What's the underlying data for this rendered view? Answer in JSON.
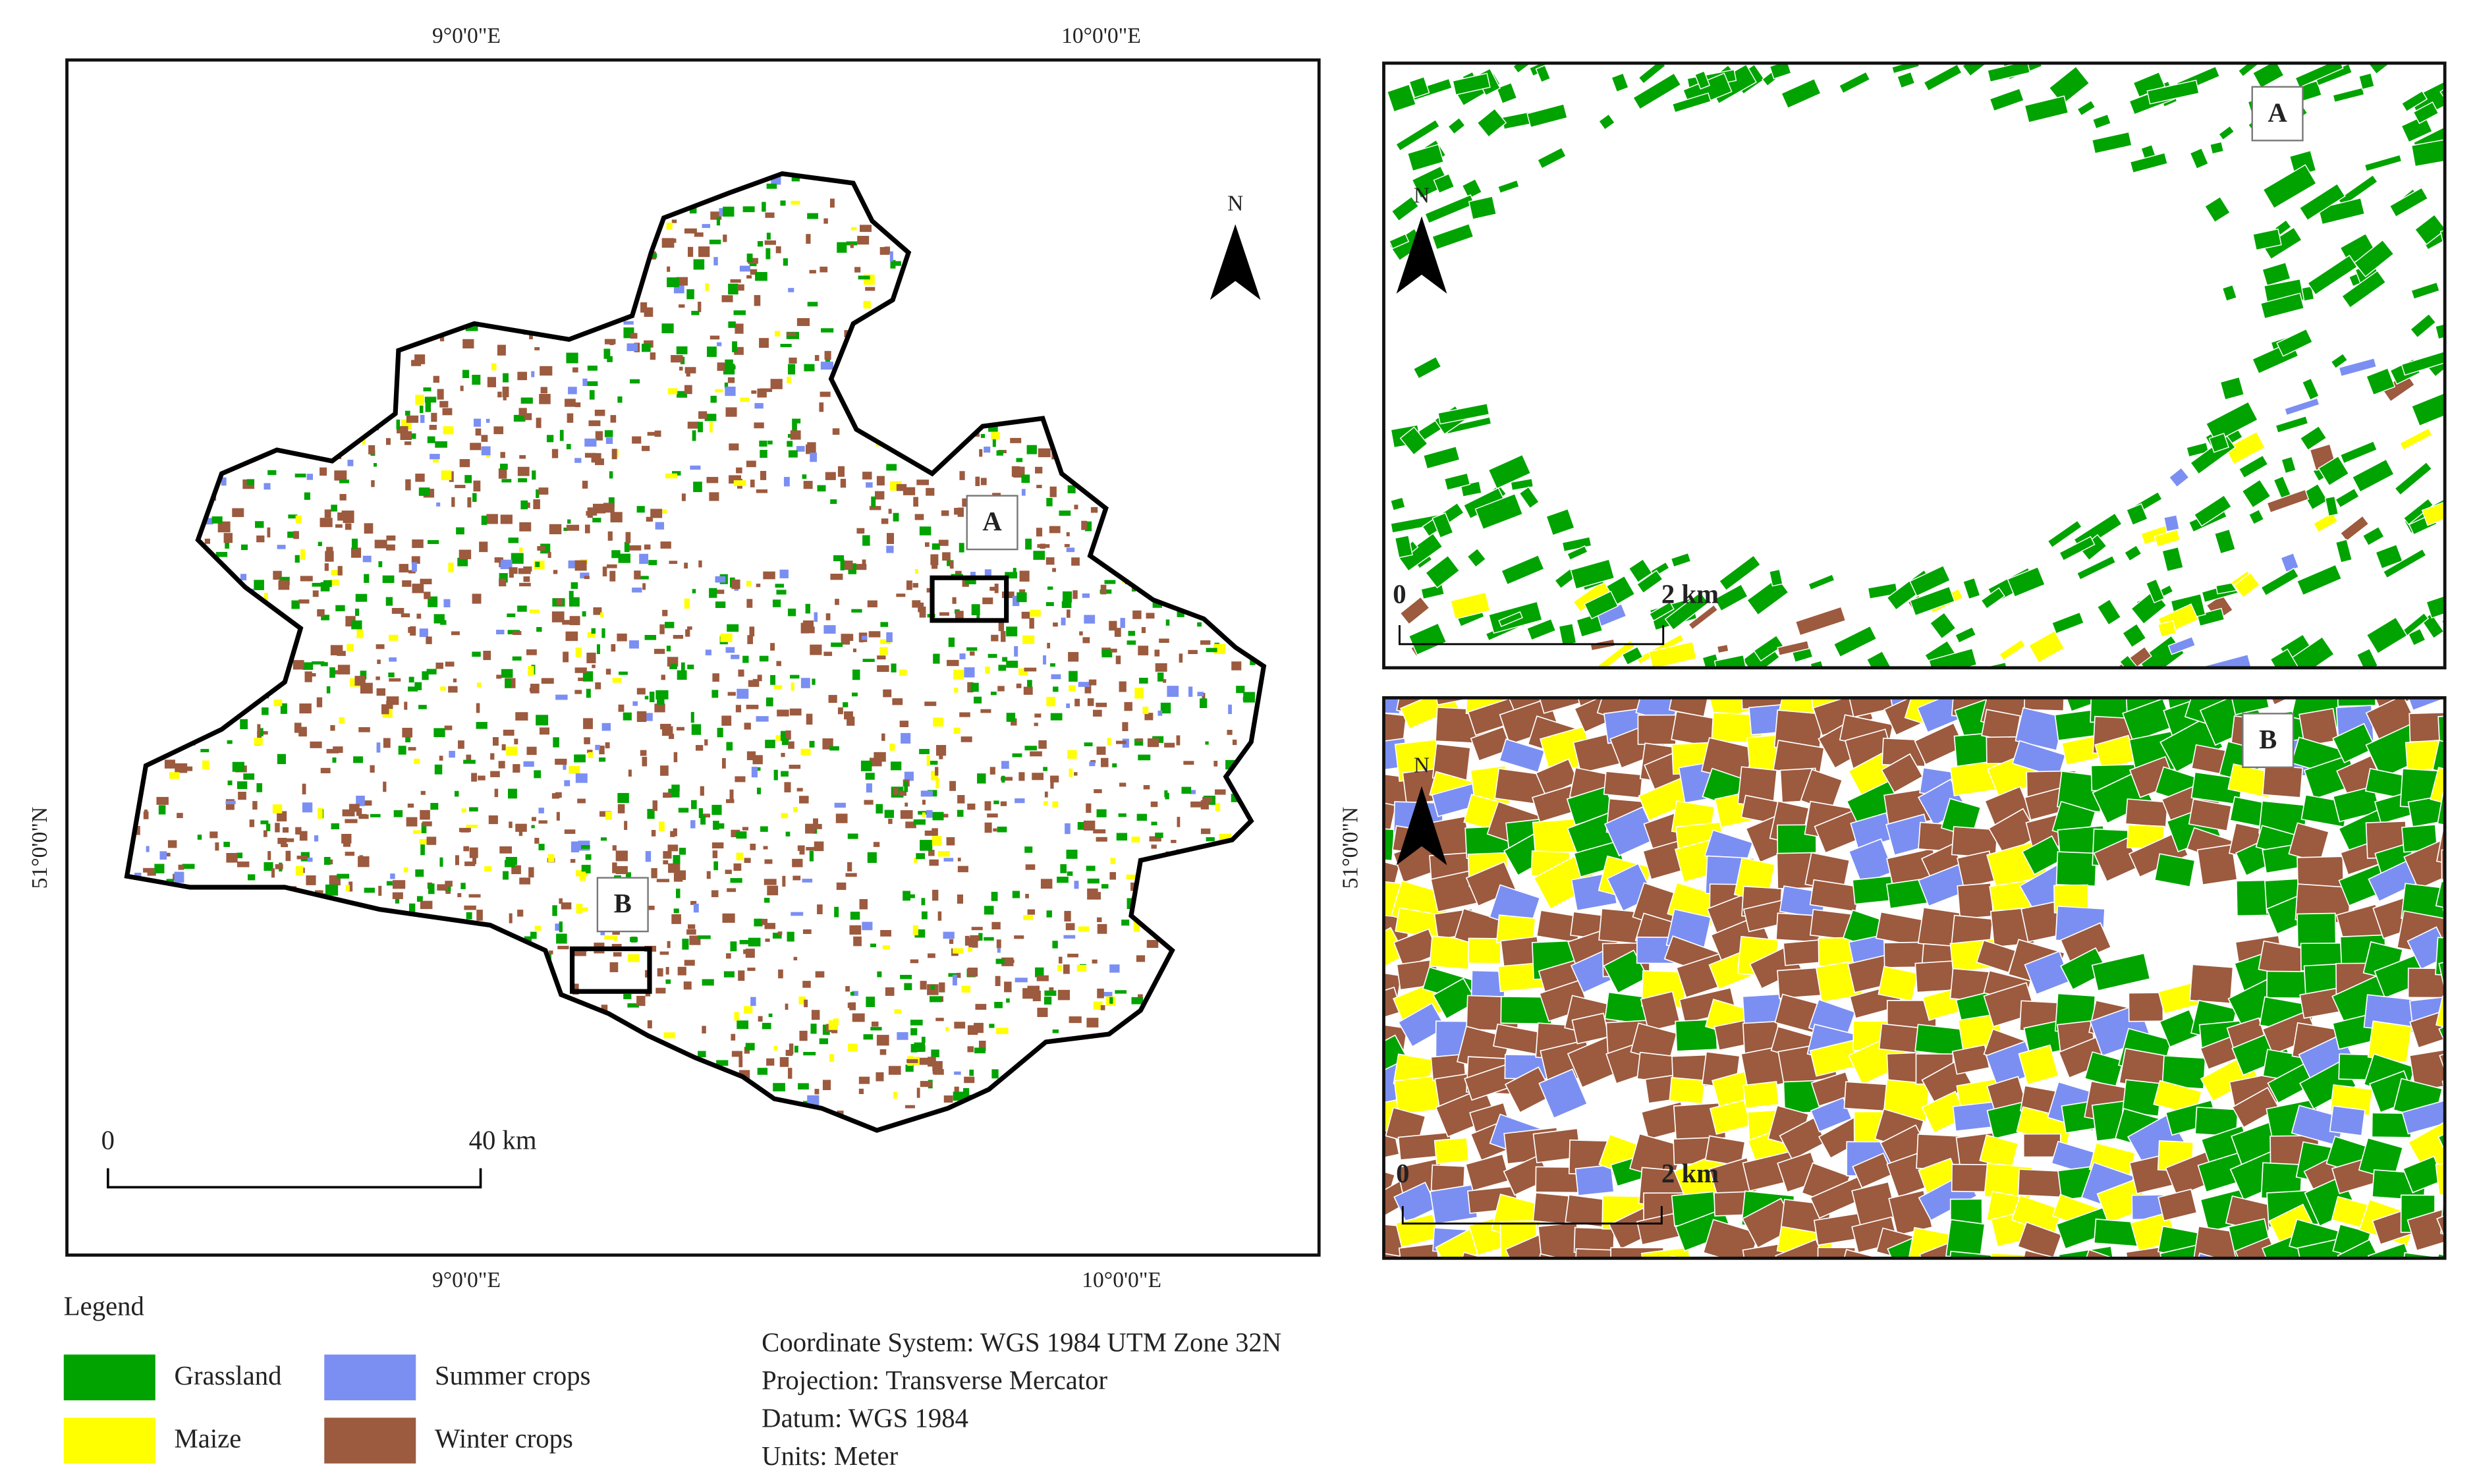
{
  "main_map": {
    "top_ticks": [
      "9°0'0\"E",
      "10°0'0\"E"
    ],
    "bottom_ticks": [
      "9°0'0\"E",
      "10°0'0\"E"
    ],
    "left_tick": "51°0'0\"N",
    "right_tick": "51°0'0\"N",
    "north": "N",
    "scale": {
      "start": "0",
      "end": "40 km"
    },
    "box_labels": [
      "A",
      "B"
    ]
  },
  "inset_a": {
    "label": "A",
    "north": "N",
    "scale": {
      "start": "0",
      "end": "2 km"
    }
  },
  "inset_b": {
    "label": "B",
    "north": "N",
    "scale": {
      "start": "0",
      "end": "2 km"
    }
  },
  "legend": {
    "title": "Legend",
    "items": [
      {
        "label": "Grassland",
        "color": "#00a300"
      },
      {
        "label": "Maize",
        "color": "#ffff00"
      },
      {
        "label": "Summer crops",
        "color": "#7b8ff2"
      },
      {
        "label": "Winter crops",
        "color": "#9c5a3e"
      }
    ]
  },
  "info": [
    "Coordinate System: WGS 1984 UTM Zone 32N",
    "Projection: Transverse Mercator",
    "Datum: WGS 1984",
    "Units: Meter"
  ]
}
